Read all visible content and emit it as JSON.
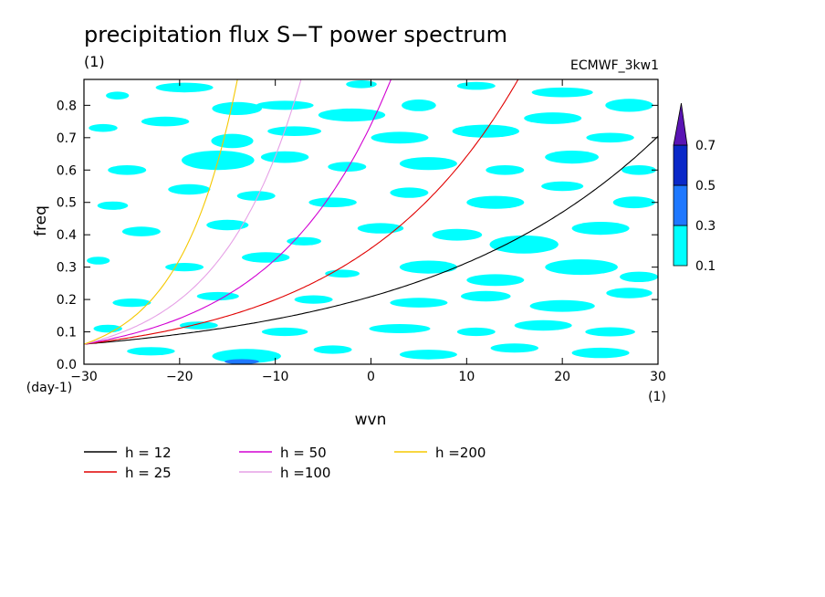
{
  "chart_data": {
    "type": "heatmap",
    "title": "precipitation flux S−T power spectrum",
    "subtitle_left": "(1)",
    "subtitle_right": "ECMWF_3kw1",
    "xlabel": "wvn",
    "ylabel": "freq",
    "x_unit": "(1)",
    "y_unit": "(day-1)",
    "xlim": [
      -30,
      30
    ],
    "ylim": [
      0,
      0.88
    ],
    "x_ticks": [
      -30,
      -20,
      -10,
      0,
      10,
      20,
      30
    ],
    "y_ticks": [
      0.0,
      0.1,
      0.2,
      0.3,
      0.4,
      0.5,
      0.6,
      0.7,
      0.8
    ],
    "y_tick_labels": [
      "0.0",
      "0.1",
      "0.2",
      "0.3",
      "0.4",
      "0.5",
      "0.6",
      "0.7",
      "0.8"
    ],
    "colorbar": {
      "levels": [
        "0.1",
        "0.3",
        "0.5",
        "0.7"
      ],
      "colors": [
        "#00ffff",
        "#1e78ff",
        "#0a28c8",
        "#5a14b4"
      ]
    },
    "shaded_regions": [
      {
        "level": 1,
        "x": -26.5,
        "y": 0.83,
        "rx": 1.2,
        "ry": 0.012
      },
      {
        "level": 1,
        "x": -19.5,
        "y": 0.855,
        "rx": 3.0,
        "ry": 0.015
      },
      {
        "level": 1,
        "x": -14.0,
        "y": 0.79,
        "rx": 2.6,
        "ry": 0.02
      },
      {
        "level": 1,
        "x": -9.0,
        "y": 0.8,
        "rx": 3.0,
        "ry": 0.014
      },
      {
        "level": 1,
        "x": -1.0,
        "y": 0.865,
        "rx": 1.6,
        "ry": 0.012
      },
      {
        "level": 1,
        "x": 5.0,
        "y": 0.8,
        "rx": 1.8,
        "ry": 0.018
      },
      {
        "level": 1,
        "x": 11.0,
        "y": 0.86,
        "rx": 2.0,
        "ry": 0.012
      },
      {
        "level": 1,
        "x": 20.0,
        "y": 0.84,
        "rx": 3.2,
        "ry": 0.015
      },
      {
        "level": 1,
        "x": 27.0,
        "y": 0.8,
        "rx": 2.5,
        "ry": 0.02
      },
      {
        "level": 1,
        "x": -28.0,
        "y": 0.73,
        "rx": 1.5,
        "ry": 0.012
      },
      {
        "level": 1,
        "x": -21.5,
        "y": 0.75,
        "rx": 2.5,
        "ry": 0.015
      },
      {
        "level": 1,
        "x": -14.5,
        "y": 0.69,
        "rx": 2.2,
        "ry": 0.022
      },
      {
        "level": 1,
        "x": -8.0,
        "y": 0.72,
        "rx": 2.8,
        "ry": 0.015
      },
      {
        "level": 1,
        "x": -2.0,
        "y": 0.77,
        "rx": 3.5,
        "ry": 0.02
      },
      {
        "level": 1,
        "x": 3.0,
        "y": 0.7,
        "rx": 3.0,
        "ry": 0.018
      },
      {
        "level": 1,
        "x": 12.0,
        "y": 0.72,
        "rx": 3.5,
        "ry": 0.02
      },
      {
        "level": 1,
        "x": 19.0,
        "y": 0.76,
        "rx": 3.0,
        "ry": 0.018
      },
      {
        "level": 1,
        "x": 25.0,
        "y": 0.7,
        "rx": 2.5,
        "ry": 0.015
      },
      {
        "level": 1,
        "x": -25.5,
        "y": 0.6,
        "rx": 2.0,
        "ry": 0.015
      },
      {
        "level": 1,
        "x": -16.0,
        "y": 0.63,
        "rx": 3.8,
        "ry": 0.03
      },
      {
        "level": 1,
        "x": -9.0,
        "y": 0.64,
        "rx": 2.5,
        "ry": 0.018
      },
      {
        "level": 1,
        "x": -2.5,
        "y": 0.61,
        "rx": 2.0,
        "ry": 0.015
      },
      {
        "level": 1,
        "x": 6.0,
        "y": 0.62,
        "rx": 3.0,
        "ry": 0.02
      },
      {
        "level": 1,
        "x": 14.0,
        "y": 0.6,
        "rx": 2.0,
        "ry": 0.015
      },
      {
        "level": 1,
        "x": 21.0,
        "y": 0.64,
        "rx": 2.8,
        "ry": 0.02
      },
      {
        "level": 1,
        "x": 28.0,
        "y": 0.6,
        "rx": 1.8,
        "ry": 0.015
      },
      {
        "level": 1,
        "x": -27.0,
        "y": 0.49,
        "rx": 1.6,
        "ry": 0.013
      },
      {
        "level": 1,
        "x": -19.0,
        "y": 0.54,
        "rx": 2.2,
        "ry": 0.016
      },
      {
        "level": 1,
        "x": -12.0,
        "y": 0.52,
        "rx": 2.0,
        "ry": 0.015
      },
      {
        "level": 1,
        "x": -4.0,
        "y": 0.5,
        "rx": 2.5,
        "ry": 0.015
      },
      {
        "level": 1,
        "x": 4.0,
        "y": 0.53,
        "rx": 2.0,
        "ry": 0.016
      },
      {
        "level": 1,
        "x": 13.0,
        "y": 0.5,
        "rx": 3.0,
        "ry": 0.02
      },
      {
        "level": 1,
        "x": 20.0,
        "y": 0.55,
        "rx": 2.2,
        "ry": 0.015
      },
      {
        "level": 1,
        "x": 27.5,
        "y": 0.5,
        "rx": 2.2,
        "ry": 0.018
      },
      {
        "level": 1,
        "x": -24.0,
        "y": 0.41,
        "rx": 2.0,
        "ry": 0.015
      },
      {
        "level": 1,
        "x": -15.0,
        "y": 0.43,
        "rx": 2.2,
        "ry": 0.016
      },
      {
        "level": 1,
        "x": -7.0,
        "y": 0.38,
        "rx": 1.8,
        "ry": 0.013
      },
      {
        "level": 1,
        "x": 1.0,
        "y": 0.42,
        "rx": 2.4,
        "ry": 0.016
      },
      {
        "level": 1,
        "x": 9.0,
        "y": 0.4,
        "rx": 2.6,
        "ry": 0.018
      },
      {
        "level": 1,
        "x": 16.0,
        "y": 0.37,
        "rx": 3.6,
        "ry": 0.028
      },
      {
        "level": 1,
        "x": 24.0,
        "y": 0.42,
        "rx": 3.0,
        "ry": 0.02
      },
      {
        "level": 1,
        "x": -28.5,
        "y": 0.32,
        "rx": 1.2,
        "ry": 0.012
      },
      {
        "level": 1,
        "x": -19.5,
        "y": 0.3,
        "rx": 2.0,
        "ry": 0.013
      },
      {
        "level": 1,
        "x": -11.0,
        "y": 0.33,
        "rx": 2.5,
        "ry": 0.016
      },
      {
        "level": 1,
        "x": -3.0,
        "y": 0.28,
        "rx": 1.8,
        "ry": 0.012
      },
      {
        "level": 1,
        "x": 6.0,
        "y": 0.3,
        "rx": 3.0,
        "ry": 0.02
      },
      {
        "level": 1,
        "x": 13.0,
        "y": 0.26,
        "rx": 3.0,
        "ry": 0.018
      },
      {
        "level": 1,
        "x": 22.0,
        "y": 0.3,
        "rx": 3.8,
        "ry": 0.024
      },
      {
        "level": 1,
        "x": 28.0,
        "y": 0.27,
        "rx": 2.0,
        "ry": 0.016
      },
      {
        "level": 1,
        "x": -25.0,
        "y": 0.19,
        "rx": 2.0,
        "ry": 0.013
      },
      {
        "level": 1,
        "x": -16.0,
        "y": 0.21,
        "rx": 2.2,
        "ry": 0.013
      },
      {
        "level": 1,
        "x": -6.0,
        "y": 0.2,
        "rx": 2.0,
        "ry": 0.013
      },
      {
        "level": 1,
        "x": 5.0,
        "y": 0.19,
        "rx": 3.0,
        "ry": 0.015
      },
      {
        "level": 1,
        "x": 12.0,
        "y": 0.21,
        "rx": 2.6,
        "ry": 0.016
      },
      {
        "level": 1,
        "x": 20.0,
        "y": 0.18,
        "rx": 3.4,
        "ry": 0.018
      },
      {
        "level": 1,
        "x": 27.0,
        "y": 0.22,
        "rx": 2.4,
        "ry": 0.016
      },
      {
        "level": 1,
        "x": -27.5,
        "y": 0.11,
        "rx": 1.5,
        "ry": 0.012
      },
      {
        "level": 1,
        "x": -18.0,
        "y": 0.12,
        "rx": 2.0,
        "ry": 0.012
      },
      {
        "level": 1,
        "x": -9.0,
        "y": 0.1,
        "rx": 2.4,
        "ry": 0.013
      },
      {
        "level": 1,
        "x": 3.0,
        "y": 0.11,
        "rx": 3.2,
        "ry": 0.014
      },
      {
        "level": 1,
        "x": 11.0,
        "y": 0.1,
        "rx": 2.0,
        "ry": 0.013
      },
      {
        "level": 1,
        "x": 18.0,
        "y": 0.12,
        "rx": 3.0,
        "ry": 0.016
      },
      {
        "level": 1,
        "x": 25.0,
        "y": 0.1,
        "rx": 2.6,
        "ry": 0.014
      },
      {
        "level": 1,
        "x": -23.0,
        "y": 0.04,
        "rx": 2.5,
        "ry": 0.013
      },
      {
        "level": 1,
        "x": -13.0,
        "y": 0.025,
        "rx": 3.6,
        "ry": 0.022
      },
      {
        "level": 1,
        "x": -4.0,
        "y": 0.045,
        "rx": 2.0,
        "ry": 0.013
      },
      {
        "level": 1,
        "x": 6.0,
        "y": 0.03,
        "rx": 3.0,
        "ry": 0.015
      },
      {
        "level": 1,
        "x": 15.0,
        "y": 0.05,
        "rx": 2.5,
        "ry": 0.014
      },
      {
        "level": 1,
        "x": 24.0,
        "y": 0.035,
        "rx": 3.0,
        "ry": 0.016
      },
      {
        "level": 2,
        "x": -13.5,
        "y": 0.008,
        "rx": 1.8,
        "ry": 0.008
      }
    ],
    "series": [
      {
        "name": "h = 12",
        "h": 12,
        "color": "#000000"
      },
      {
        "name": "h = 25",
        "h": 25,
        "color": "#e10000"
      },
      {
        "name": "h = 50",
        "h": 50,
        "color": "#d200d2"
      },
      {
        "name": "h =100",
        "h": 100,
        "color": "#e6a0e6"
      },
      {
        "name": "h =200",
        "h": 200,
        "color": "#f5c800"
      }
    ]
  }
}
